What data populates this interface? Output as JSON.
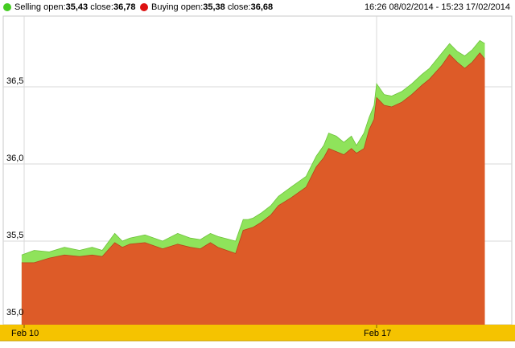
{
  "legend": {
    "selling": {
      "label": "Selling",
      "open_label": "open:",
      "open_value": "35,43",
      "close_label": "close:",
      "close_value": "36,78",
      "color": "#44cc22"
    },
    "buying": {
      "label": "Buying",
      "open_label": "open:",
      "open_value": "35,38",
      "close_label": "close:",
      "close_value": "36,68",
      "color": "#dd1111"
    },
    "date_range": "16:26 08/02/2014 - 15:23 17/02/2014"
  },
  "chart_data": {
    "type": "area",
    "title": "",
    "xlabel": "",
    "ylabel": "",
    "ylim": [
      35.0,
      36.95
    ],
    "y_ticks": [
      35.0,
      35.5,
      36.0,
      36.5
    ],
    "y_tick_labels": [
      "35,0",
      "35,5",
      "36,0",
      "36,5"
    ],
    "x_ticks": [
      {
        "label": "Feb 10",
        "x": 0
      },
      {
        "label": "Feb 17",
        "x": 7
      }
    ],
    "grid": true,
    "band_color": "#f5c300",
    "x": [
      -0.05,
      0.2,
      0.5,
      0.8,
      1.1,
      1.35,
      1.55,
      1.8,
      1.95,
      2.1,
      2.4,
      2.75,
      3.05,
      3.3,
      3.5,
      3.7,
      3.85,
      4.2,
      4.35,
      4.45,
      4.55,
      4.7,
      4.9,
      5.05,
      5.3,
      5.6,
      5.8,
      5.95,
      6.05,
      6.2,
      6.35,
      6.5,
      6.6,
      6.75,
      6.85,
      6.95,
      7.0,
      7.15,
      7.3,
      7.5,
      7.7,
      7.9,
      8.05,
      8.3,
      8.45,
      8.6,
      8.75,
      8.9,
      9.05,
      9.15
    ],
    "series": [
      {
        "name": "Selling",
        "color": "#8fe35b",
        "values": [
          35.41,
          35.44,
          35.43,
          35.46,
          35.44,
          35.46,
          35.44,
          35.55,
          35.5,
          35.52,
          35.54,
          35.5,
          35.55,
          35.52,
          35.51,
          35.55,
          35.53,
          35.5,
          35.64,
          35.64,
          35.65,
          35.68,
          35.73,
          35.79,
          35.85,
          35.92,
          36.05,
          36.12,
          36.2,
          36.18,
          36.14,
          36.18,
          36.12,
          36.2,
          36.3,
          36.38,
          36.52,
          36.45,
          36.44,
          36.47,
          36.52,
          36.58,
          36.62,
          36.72,
          36.78,
          36.73,
          36.7,
          36.74,
          36.8,
          36.78
        ]
      },
      {
        "name": "Buying",
        "color": "#dd5b28",
        "values": [
          35.36,
          35.36,
          35.39,
          35.41,
          35.4,
          35.41,
          35.4,
          35.49,
          35.46,
          35.48,
          35.49,
          35.45,
          35.48,
          35.46,
          35.45,
          35.49,
          35.46,
          35.42,
          35.57,
          35.58,
          35.59,
          35.62,
          35.67,
          35.73,
          35.78,
          35.85,
          35.98,
          36.04,
          36.1,
          36.08,
          36.06,
          36.1,
          36.07,
          36.1,
          36.22,
          36.29,
          36.43,
          36.38,
          36.37,
          36.4,
          36.45,
          36.51,
          36.55,
          36.64,
          36.71,
          36.66,
          36.62,
          36.66,
          36.72,
          36.68
        ]
      }
    ]
  }
}
